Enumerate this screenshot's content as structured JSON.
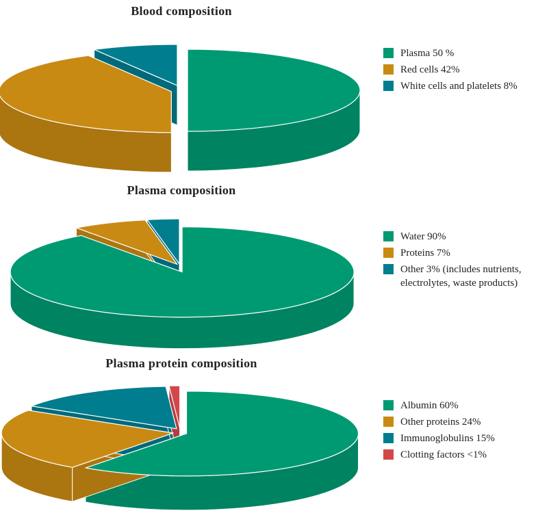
{
  "chart_data": [
    {
      "type": "pie",
      "title": "Blood composition",
      "slices": [
        {
          "label": "Plasma 50 %",
          "value": 50,
          "color": "#009a72"
        },
        {
          "label": "Red cells 42%",
          "value": 42,
          "color": "#c98a13"
        },
        {
          "label": "White cells and platelets 8%",
          "value": 8,
          "color": "#007d8f"
        }
      ],
      "legend_position": "right",
      "style": "3d-exploded"
    },
    {
      "type": "pie",
      "title": "Plasma composition",
      "slices": [
        {
          "label": "Water 90%",
          "value": 90,
          "color": "#009a72"
        },
        {
          "label": "Proteins 7%",
          "value": 7,
          "color": "#c98a13"
        },
        {
          "label": "Other 3% (includes nutrients, electrolytes, waste products)",
          "value": 3,
          "color": "#007d8f"
        }
      ],
      "legend_position": "right",
      "style": "3d-exploded"
    },
    {
      "type": "pie",
      "title": "Plasma protein composition",
      "slices": [
        {
          "label": "Albumin 60%",
          "value": 60,
          "color": "#009a72"
        },
        {
          "label": "Other proteins 24%",
          "value": 24,
          "color": "#c98a13"
        },
        {
          "label": "Immunoglobulins 15%",
          "value": 15,
          "color": "#007d8f"
        },
        {
          "label": "Clotting factors <1%",
          "value": 1,
          "color": "#d2484a"
        }
      ],
      "legend_position": "right",
      "style": "3d-exploded"
    }
  ]
}
